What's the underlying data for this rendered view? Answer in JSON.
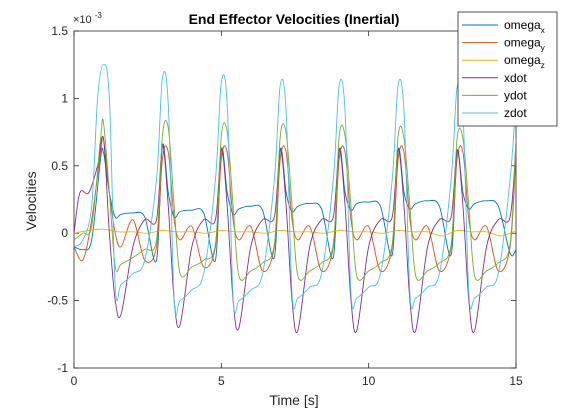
{
  "chart_data": {
    "type": "line",
    "title": "End Effector Velocities (Inertial)",
    "xlabel": "Time [s]",
    "ylabel": "Velocities",
    "y_exponent_label": "×10",
    "y_exponent_power": "-3",
    "xlim": [
      0,
      15
    ],
    "ylim": [
      -1,
      1.5
    ],
    "xticks": [
      0,
      5,
      10,
      15
    ],
    "yticks": [
      -1,
      -0.5,
      0,
      0.5,
      1,
      1.5
    ],
    "xtick_labels": [
      "0",
      "5",
      "10",
      "15"
    ],
    "ytick_labels": [
      "-1",
      "-0.5",
      "0",
      "0.5",
      "1",
      "1.5"
    ],
    "grid": false,
    "legend_position": "top-right",
    "period": 2.0,
    "series": [
      {
        "name": "omega",
        "subscript": "x",
        "color": "#0072BD",
        "x": [
          0,
          0.3,
          0.6,
          0.9,
          1.0,
          1.2,
          1.4,
          1.6,
          2.0,
          2.4,
          2.8,
          3.0,
          3.2,
          3.4,
          3.6,
          4.0,
          4.4,
          4.8,
          5.0,
          5.2,
          5.4,
          5.6,
          6.0,
          6.4,
          6.8,
          7.0,
          7.2,
          7.4,
          7.6,
          8.0,
          8.4,
          8.8,
          9.0,
          9.2,
          9.4,
          9.6,
          10.0,
          10.4,
          10.8,
          11.0,
          11.2,
          11.4,
          11.6,
          12.0,
          12.4,
          12.8,
          13.0,
          13.2,
          13.4,
          13.6,
          14.0,
          14.4,
          14.8,
          15.0
        ],
        "y": [
          -0.1,
          -0.12,
          -0.05,
          0.55,
          0.6,
          0.3,
          0.12,
          0.14,
          0.15,
          0.12,
          -0.2,
          0.65,
          0.3,
          0.12,
          0.16,
          0.17,
          0.15,
          -0.2,
          0.62,
          0.3,
          0.14,
          0.18,
          0.2,
          0.17,
          -0.18,
          0.62,
          0.3,
          0.16,
          0.2,
          0.22,
          0.18,
          -0.18,
          0.62,
          0.3,
          0.17,
          0.22,
          0.23,
          0.2,
          -0.16,
          0.62,
          0.3,
          0.18,
          0.22,
          0.24,
          0.2,
          -0.16,
          0.6,
          0.3,
          0.18,
          0.22,
          0.24,
          0.2,
          -0.15,
          -0.12
        ]
      },
      {
        "name": "omega",
        "subscript": "y",
        "color": "#D95319",
        "x": [
          0,
          0.3,
          0.6,
          0.9,
          1.0,
          1.2,
          1.4,
          1.6,
          2.0,
          2.4,
          2.8,
          3.0,
          3.2,
          3.4,
          3.6,
          4.0,
          4.4,
          4.8,
          5.0,
          5.2,
          5.4,
          5.6,
          6.0,
          6.4,
          6.8,
          7.0,
          7.2,
          7.4,
          7.6,
          8.0,
          8.4,
          8.8,
          9.0,
          9.2,
          9.4,
          9.6,
          10.0,
          10.4,
          10.8,
          11.0,
          11.2,
          11.4,
          11.6,
          12.0,
          12.4,
          12.8,
          13.0,
          13.2,
          13.4,
          13.6,
          14.0,
          14.4,
          14.8,
          15.0
        ],
        "y": [
          -0.1,
          -0.2,
          0.1,
          0.6,
          0.7,
          0.3,
          0.0,
          -0.1,
          0.1,
          -0.2,
          -0.1,
          0.55,
          0.6,
          0.1,
          -0.05,
          0.05,
          -0.25,
          -0.1,
          0.55,
          0.6,
          0.1,
          -0.05,
          0.05,
          -0.28,
          -0.1,
          0.55,
          0.6,
          0.1,
          -0.05,
          0.05,
          -0.28,
          -0.1,
          0.55,
          0.6,
          0.1,
          -0.05,
          0.05,
          -0.28,
          -0.1,
          0.55,
          0.6,
          0.1,
          -0.05,
          0.05,
          -0.28,
          -0.1,
          0.55,
          0.6,
          0.1,
          -0.05,
          0.05,
          -0.28,
          -0.1,
          0.6
        ]
      },
      {
        "name": "omega",
        "subscript": "z",
        "color": "#EDB120",
        "x": [
          0,
          0.5,
          1.0,
          1.5,
          2.0,
          2.5,
          3.0,
          3.5,
          4.0,
          4.5,
          5.0,
          5.5,
          6.0,
          6.5,
          7.0,
          7.5,
          8.0,
          8.5,
          9.0,
          9.5,
          10.0,
          10.5,
          11.0,
          11.5,
          12.0,
          12.5,
          13.0,
          13.5,
          14.0,
          14.5,
          15.0
        ],
        "y": [
          0.0,
          0.02,
          0.03,
          0.01,
          0.01,
          0.0,
          0.02,
          0.01,
          0.01,
          0.0,
          0.02,
          0.01,
          0.01,
          0.0,
          0.02,
          0.01,
          0.01,
          0.0,
          0.02,
          0.01,
          0.01,
          0.0,
          0.02,
          0.01,
          0.01,
          -0.02,
          0.02,
          0.01,
          0.01,
          -0.02,
          0.02
        ]
      },
      {
        "name": "xdot",
        "subscript": "",
        "color": "#7E2F8E",
        "x": [
          0,
          0.2,
          0.5,
          0.8,
          1.0,
          1.2,
          1.4,
          1.6,
          2.0,
          2.4,
          2.8,
          3.0,
          3.2,
          3.4,
          3.6,
          4.0,
          4.4,
          4.8,
          5.0,
          5.2,
          5.4,
          5.6,
          6.0,
          6.4,
          6.8,
          7.0,
          7.2,
          7.4,
          7.6,
          8.0,
          8.4,
          8.8,
          9.0,
          9.2,
          9.4,
          9.6,
          10.0,
          10.4,
          10.8,
          11.0,
          11.2,
          11.4,
          11.6,
          12.0,
          12.4,
          12.8,
          13.0,
          13.2,
          13.4,
          13.6,
          14.0,
          14.4,
          14.8,
          15.0
        ],
        "y": [
          0.0,
          0.3,
          0.3,
          0.5,
          0.7,
          0.0,
          -0.5,
          -0.6,
          -0.1,
          0.1,
          0.1,
          0.65,
          0.2,
          -0.5,
          -0.68,
          -0.1,
          0.1,
          0.1,
          0.62,
          0.2,
          -0.5,
          -0.7,
          -0.1,
          0.1,
          0.12,
          0.62,
          0.2,
          -0.5,
          -0.72,
          -0.1,
          0.1,
          0.12,
          0.62,
          0.2,
          -0.5,
          -0.72,
          -0.1,
          0.1,
          0.12,
          0.62,
          0.2,
          -0.5,
          -0.72,
          -0.1,
          0.1,
          0.12,
          0.62,
          0.2,
          -0.5,
          -0.72,
          -0.1,
          0.1,
          0.12,
          0.66
        ]
      },
      {
        "name": "ydot",
        "subscript": "",
        "color": "#77AC30",
        "x": [
          0,
          0.3,
          0.6,
          0.9,
          1.0,
          1.2,
          1.4,
          1.6,
          2.0,
          2.4,
          2.8,
          3.0,
          3.2,
          3.4,
          3.6,
          4.0,
          4.4,
          4.8,
          5.0,
          5.2,
          5.4,
          5.6,
          6.0,
          6.4,
          6.8,
          7.0,
          7.2,
          7.4,
          7.6,
          8.0,
          8.4,
          8.8,
          9.0,
          9.2,
          9.4,
          9.6,
          10.0,
          10.4,
          10.8,
          11.0,
          11.2,
          11.4,
          11.6,
          12.0,
          12.4,
          12.8,
          13.0,
          13.2,
          13.4,
          13.6,
          14.0,
          14.4,
          14.8,
          15.0
        ],
        "y": [
          -0.05,
          0.0,
          0.05,
          0.7,
          0.82,
          0.3,
          -0.25,
          -0.23,
          -0.18,
          -0.12,
          -0.05,
          0.72,
          0.78,
          0.2,
          -0.3,
          -0.25,
          -0.2,
          -0.08,
          0.72,
          0.75,
          0.2,
          -0.32,
          -0.28,
          -0.22,
          -0.08,
          0.72,
          0.74,
          0.2,
          -0.32,
          -0.28,
          -0.22,
          -0.08,
          0.72,
          0.72,
          0.2,
          -0.32,
          -0.28,
          -0.22,
          -0.08,
          0.72,
          0.7,
          0.2,
          -0.32,
          -0.28,
          -0.22,
          -0.08,
          0.7,
          0.7,
          0.2,
          -0.32,
          -0.28,
          -0.22,
          -0.08,
          0.7
        ]
      },
      {
        "name": "zdot",
        "subscript": "",
        "color": "#4DBEEE",
        "x": [
          0,
          0.3,
          0.6,
          0.8,
          1.0,
          1.2,
          1.4,
          1.6,
          2.0,
          2.4,
          2.8,
          3.0,
          3.2,
          3.4,
          3.6,
          4.0,
          4.4,
          4.8,
          5.0,
          5.2,
          5.4,
          5.6,
          6.0,
          6.4,
          6.8,
          7.0,
          7.2,
          7.4,
          7.6,
          8.0,
          8.4,
          8.8,
          9.0,
          9.2,
          9.4,
          9.6,
          10.0,
          10.4,
          10.8,
          11.0,
          11.2,
          11.4,
          11.6,
          12.0,
          12.4,
          12.8,
          13.0,
          13.2,
          13.4,
          13.6,
          14.0,
          14.4,
          14.8,
          15.0
        ],
        "y": [
          -0.1,
          -0.05,
          0.2,
          1.0,
          1.25,
          1.0,
          -0.4,
          -0.38,
          -0.3,
          -0.2,
          0.4,
          1.15,
          0.95,
          -0.5,
          -0.5,
          -0.42,
          -0.3,
          0.4,
          1.12,
          0.95,
          -0.48,
          -0.5,
          -0.42,
          -0.3,
          0.4,
          1.1,
          0.9,
          -0.45,
          -0.48,
          -0.4,
          -0.3,
          0.4,
          1.1,
          0.9,
          -0.45,
          -0.48,
          -0.4,
          -0.3,
          0.4,
          1.1,
          0.9,
          -0.45,
          -0.48,
          -0.4,
          -0.3,
          0.4,
          1.08,
          0.9,
          -0.45,
          -0.48,
          -0.4,
          -0.3,
          0.4,
          1.0
        ]
      }
    ]
  }
}
